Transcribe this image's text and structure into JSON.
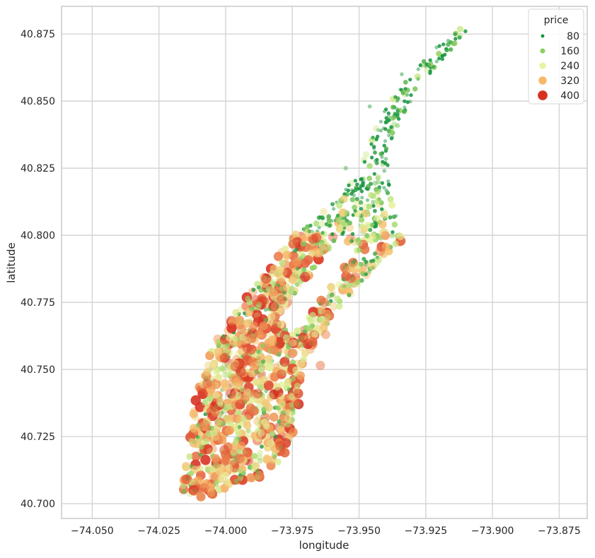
{
  "chart_data": {
    "type": "scatter",
    "title": "",
    "xlabel": "longitude",
    "ylabel": "latitude",
    "xlim": [
      -74.0615,
      -73.8645
    ],
    "ylim": [
      40.6945,
      40.8853
    ],
    "xticks": [
      -74.05,
      -74.025,
      -74.0,
      -73.975,
      -73.95,
      -73.925,
      -73.9,
      -73.875
    ],
    "xtick_labels": [
      "−74.050",
      "−74.025",
      "−74.000",
      "−73.975",
      "−73.950",
      "−73.925",
      "−73.900",
      "−73.875"
    ],
    "yticks": [
      40.7,
      40.725,
      40.75,
      40.775,
      40.8,
      40.825,
      40.85,
      40.875
    ],
    "ytick_labels": [
      "40.700",
      "40.725",
      "40.750",
      "40.775",
      "40.800",
      "40.825",
      "40.850",
      "40.875"
    ],
    "grid": true,
    "legend": {
      "title": "price",
      "placement": "top-right",
      "entries": [
        {
          "label": "80",
          "value": 80,
          "color": "#1a9641"
        },
        {
          "label": "160",
          "value": 160,
          "color": "#8cce60"
        },
        {
          "label": "240",
          "value": 240,
          "color": "#e6f5a2"
        },
        {
          "label": "320",
          "value": 320,
          "color": "#f8b86a"
        },
        {
          "label": "400",
          "value": 400,
          "color": "#d7301f"
        }
      ]
    },
    "hue_variable": "price",
    "size_variable": "price",
    "point_alpha": 0.5,
    "description_density": "dense cloud of listing points covering Manhattan; green (cheaper) points dominate north of 40.80, red/orange (expensive) points concentrated in Midtown and Lower Manhattan",
    "region_outline": [
      [
        -74.0175,
        40.703
      ],
      [
        -74.0155,
        40.713
      ],
      [
        -74.014,
        40.722
      ],
      [
        -74.0125,
        40.733
      ],
      [
        -74.0105,
        40.742
      ],
      [
        -74.0075,
        40.751
      ],
      [
        -74.0045,
        40.76
      ],
      [
        -73.9985,
        40.768
      ],
      [
        -73.9915,
        40.778
      ],
      [
        -73.9835,
        40.788
      ],
      [
        -73.9755,
        40.799
      ],
      [
        -73.9655,
        40.807
      ],
      [
        -73.9565,
        40.815
      ],
      [
        -73.951,
        40.823
      ],
      [
        -73.9465,
        40.833
      ],
      [
        -73.9425,
        40.843
      ],
      [
        -73.9375,
        40.852
      ],
      [
        -73.93,
        40.861
      ],
      [
        -73.921,
        40.87
      ],
      [
        -73.912,
        40.877
      ],
      [
        -73.9095,
        40.8765
      ],
      [
        -73.918,
        40.866
      ],
      [
        -73.926,
        40.857
      ],
      [
        -73.931,
        40.849
      ],
      [
        -73.936,
        40.84
      ],
      [
        -73.9395,
        40.83
      ],
      [
        -73.9385,
        40.818
      ],
      [
        -73.936,
        40.807
      ],
      [
        -73.9335,
        40.797
      ],
      [
        -73.9395,
        40.793
      ],
      [
        -73.9445,
        40.788
      ],
      [
        -73.9495,
        40.782
      ],
      [
        -73.9545,
        40.776
      ],
      [
        -73.9595,
        40.77
      ],
      [
        -73.9655,
        40.762
      ],
      [
        -73.97,
        40.754
      ],
      [
        -73.9725,
        40.745
      ],
      [
        -73.9725,
        40.736
      ],
      [
        -73.9745,
        40.727
      ],
      [
        -73.9775,
        40.718
      ],
      [
        -73.9865,
        40.71
      ],
      [
        -73.9965,
        40.707
      ],
      [
        -74.0055,
        40.703
      ],
      [
        -74.0135,
        40.7015
      ]
    ],
    "exclusion_zone": [
      [
        -73.9815,
        40.7685
      ],
      [
        -73.9585,
        40.7985
      ],
      [
        -73.9495,
        40.7965
      ],
      [
        -73.9725,
        40.7645
      ]
    ],
    "point_samples": [
      {
        "lon": -74.012,
        "lat": 40.705,
        "price": 400
      },
      {
        "lon": -74.015,
        "lat": 40.709,
        "price": 380
      },
      {
        "lon": -74.008,
        "lat": 40.706,
        "price": 360
      },
      {
        "lon": -74.0005,
        "lat": 40.72,
        "price": 390
      },
      {
        "lon": -73.998,
        "lat": 40.741,
        "price": 395
      },
      {
        "lon": -73.988,
        "lat": 40.741,
        "price": 385
      },
      {
        "lon": -73.9795,
        "lat": 40.7215,
        "price": 390
      },
      {
        "lon": -73.992,
        "lat": 40.758,
        "price": 380
      },
      {
        "lon": -73.975,
        "lat": 40.756,
        "price": 370
      },
      {
        "lon": -73.994,
        "lat": 40.765,
        "price": 360
      },
      {
        "lon": -73.979,
        "lat": 40.776,
        "price": 380
      },
      {
        "lon": -73.973,
        "lat": 40.79,
        "price": 340
      },
      {
        "lon": -73.966,
        "lat": 40.799,
        "price": 390
      },
      {
        "lon": -73.9625,
        "lat": 40.763,
        "price": 350
      },
      {
        "lon": -73.963,
        "lat": 40.775,
        "price": 370
      },
      {
        "lon": -73.953,
        "lat": 40.784,
        "price": 380
      },
      {
        "lon": -73.942,
        "lat": 40.794,
        "price": 360
      },
      {
        "lon": -73.9645,
        "lat": 40.7515,
        "price": 360
      },
      {
        "lon": -73.955,
        "lat": 40.825,
        "price": 120
      },
      {
        "lon": -73.946,
        "lat": 40.848,
        "price": 100
      },
      {
        "lon": -73.934,
        "lat": 40.86,
        "price": 90
      },
      {
        "lon": -73.921,
        "lat": 40.87,
        "price": 80
      }
    ]
  }
}
